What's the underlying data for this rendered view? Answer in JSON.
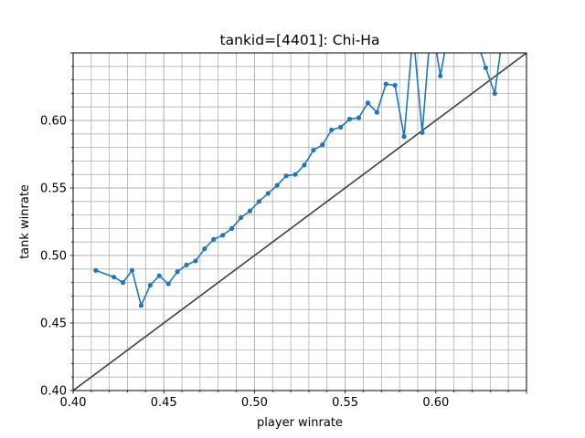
{
  "chart_data": {
    "type": "line",
    "title": "tankid=[4401]: Chi-Ha",
    "xlabel": "player winrate",
    "ylabel": "tank winrate",
    "xlim": [
      0.4,
      0.65
    ],
    "ylim": [
      0.4,
      0.65
    ],
    "grid": true,
    "grid_minor": true,
    "x_ticks": [
      0.4,
      0.45,
      0.5,
      0.55,
      0.6
    ],
    "x_tick_labels": [
      "0.40",
      "0.45",
      "0.50",
      "0.55",
      "0.60"
    ],
    "y_ticks": [
      0.4,
      0.45,
      0.5,
      0.55,
      0.6
    ],
    "y_tick_labels": [
      "0.40",
      "0.45",
      "0.50",
      "0.55",
      "0.60"
    ],
    "colors": {
      "series": "#1f77b4",
      "diagonal": "#404040",
      "grid": "#b0b0b0"
    },
    "series": [
      {
        "x": [
          0.4125,
          0.4225,
          0.4275,
          0.4325,
          0.4375,
          0.4425,
          0.4475,
          0.4525,
          0.4575,
          0.4625,
          0.4675,
          0.4725,
          0.4775,
          0.4825,
          0.4875,
          0.4925,
          0.4975,
          0.5025,
          0.5075,
          0.5125,
          0.5175,
          0.5225,
          0.5275,
          0.5325,
          0.5375,
          0.5425,
          0.5475,
          0.5525,
          0.5575,
          0.5625,
          0.5675,
          0.5725,
          0.5775,
          0.5825,
          0.5875,
          0.5925,
          0.5975,
          0.6025,
          0.6075,
          0.6125,
          0.6175,
          0.6225,
          0.6275,
          0.6325,
          0.6375
        ],
        "values": [
          0.489,
          0.484,
          0.48,
          0.489,
          0.463,
          0.478,
          0.485,
          0.479,
          0.488,
          0.493,
          0.496,
          0.505,
          0.512,
          0.515,
          0.52,
          0.528,
          0.533,
          0.54,
          0.546,
          0.552,
          0.559,
          0.56,
          0.567,
          0.578,
          0.582,
          0.593,
          0.595,
          0.601,
          0.602,
          0.613,
          0.606,
          0.627,
          0.626,
          0.588,
          0.665,
          0.591,
          0.675,
          0.633,
          0.67,
          0.68,
          0.7,
          0.66,
          0.639,
          0.62,
          0.67
        ]
      },
      {
        "x": [
          0.4,
          0.65
        ],
        "values": [
          0.4,
          0.65
        ]
      }
    ]
  }
}
